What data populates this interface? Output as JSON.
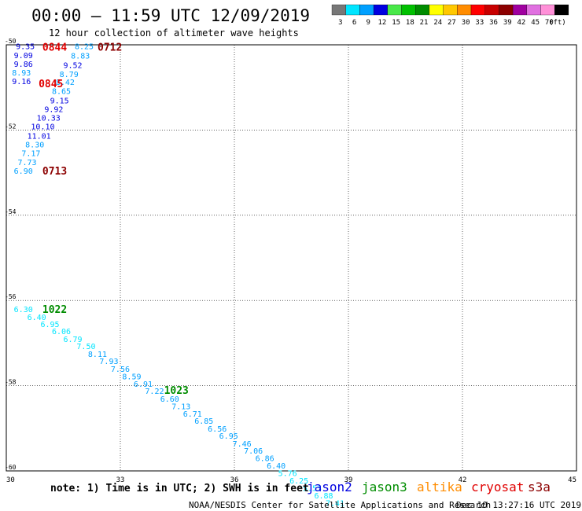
{
  "header": {
    "title": "00:00 – 11:59 UTC 12/09/2019",
    "subtitle": "12 hour collection of altimeter wave heights"
  },
  "legend": {
    "unit": "(ft)",
    "bins": [
      {
        "label": "3",
        "color": "#777777"
      },
      {
        "label": "6",
        "color": "#00e5ff"
      },
      {
        "label": "9",
        "color": "#00a0ff"
      },
      {
        "label": "12",
        "color": "#0000e0"
      },
      {
        "label": "15",
        "color": "#48e848"
      },
      {
        "label": "18",
        "color": "#00c000"
      },
      {
        "label": "21",
        "color": "#008c00"
      },
      {
        "label": "24",
        "color": "#ffff00"
      },
      {
        "label": "27",
        "color": "#ffc800"
      },
      {
        "label": "30",
        "color": "#ff8c00"
      },
      {
        "label": "33",
        "color": "#ff0000"
      },
      {
        "label": "36",
        "color": "#c80000"
      },
      {
        "label": "39",
        "color": "#8c0000"
      },
      {
        "label": "42",
        "color": "#a000a0"
      },
      {
        "label": "45",
        "color": "#e070e0"
      },
      {
        "label": "70",
        "color": "#ff90d8"
      },
      {
        "label": "",
        "color": "#000000"
      }
    ]
  },
  "chart_data": {
    "type": "scatter",
    "title": "00:00 – 11:59 UTC 12/09/2019",
    "subtitle": "12 hour collection of altimeter wave heights",
    "xlabel": "",
    "ylabel": "",
    "xlim": [
      30,
      45
    ],
    "ylim": [
      -60,
      -50
    ],
    "xticks": [
      30,
      33,
      36,
      39,
      42,
      45
    ],
    "yticks": [
      -50,
      -52,
      -54,
      -56,
      -58,
      -60
    ],
    "grid": true,
    "units": "ft",
    "series": [
      {
        "name": "jason2",
        "color": "#0000e0",
        "points": [
          {
            "x": 30.25,
            "y": -50.03,
            "v": "9.35"
          },
          {
            "x": 30.2,
            "y": -50.24,
            "v": "9.09"
          },
          {
            "x": 30.2,
            "y": -50.44,
            "v": "9.86"
          },
          {
            "x": 30.15,
            "y": -50.85,
            "v": "9.16"
          },
          {
            "x": 31.5,
            "y": -50.47,
            "v": "9.52"
          },
          {
            "x": 31.15,
            "y": -51.3,
            "v": "9.15"
          },
          {
            "x": 31.0,
            "y": -51.5,
            "v": "9.92"
          },
          {
            "x": 30.8,
            "y": -51.71,
            "v": "10.33"
          },
          {
            "x": 30.65,
            "y": -51.91,
            "v": "10.10"
          },
          {
            "x": 30.55,
            "y": -52.13,
            "v": "11.01"
          }
        ]
      },
      {
        "name": "jason3",
        "color": "#008c00",
        "points": []
      },
      {
        "name": "altika",
        "color": "#ff8c00",
        "points": []
      },
      {
        "name": "cryosat",
        "color": "#e00000",
        "points": []
      },
      {
        "name": "s3a",
        "color": "#8c0000",
        "points": []
      }
    ],
    "observations": [
      {
        "x": 30.25,
        "y": -50.03,
        "v": "9.35",
        "color": "#0000e0"
      },
      {
        "x": 30.2,
        "y": -50.24,
        "v": "9.09",
        "color": "#0000e0"
      },
      {
        "x": 30.2,
        "y": -50.44,
        "v": "9.86",
        "color": "#0000e0"
      },
      {
        "x": 30.15,
        "y": -50.65,
        "v": "8.93",
        "color": "#00a0ff"
      },
      {
        "x": 30.15,
        "y": -50.85,
        "v": "9.16",
        "color": "#0000e0"
      },
      {
        "x": 31.8,
        "y": -50.03,
        "v": "8.25",
        "color": "#00a0ff"
      },
      {
        "x": 31.7,
        "y": -50.25,
        "v": "8.83",
        "color": "#00a0ff"
      },
      {
        "x": 31.5,
        "y": -50.47,
        "v": "9.52",
        "color": "#0000e0"
      },
      {
        "x": 31.4,
        "y": -50.68,
        "v": "8.79",
        "color": "#00a0ff"
      },
      {
        "x": 31.3,
        "y": -50.87,
        "v": "8.42",
        "color": "#00a0ff"
      },
      {
        "x": 31.2,
        "y": -51.08,
        "v": "8.65",
        "color": "#00a0ff"
      },
      {
        "x": 31.15,
        "y": -51.3,
        "v": "9.15",
        "color": "#0000e0"
      },
      {
        "x": 31.0,
        "y": -51.5,
        "v": "9.92",
        "color": "#0000e0"
      },
      {
        "x": 30.8,
        "y": -51.71,
        "v": "10.33",
        "color": "#0000e0"
      },
      {
        "x": 30.65,
        "y": -51.91,
        "v": "10.10",
        "color": "#0000e0"
      },
      {
        "x": 30.55,
        "y": -52.13,
        "v": "11.01",
        "color": "#0000e0"
      },
      {
        "x": 30.5,
        "y": -52.33,
        "v": "8.30",
        "color": "#00a0ff"
      },
      {
        "x": 30.4,
        "y": -52.54,
        "v": "7.17",
        "color": "#00a0ff"
      },
      {
        "x": 30.3,
        "y": -52.75,
        "v": "7.73",
        "color": "#00a0ff"
      },
      {
        "x": 30.2,
        "y": -52.95,
        "v": "6.90",
        "color": "#00a0ff"
      },
      {
        "x": 30.2,
        "y": -56.2,
        "v": "6.30",
        "color": "#00e5ff"
      },
      {
        "x": 30.55,
        "y": -56.38,
        "v": "6.40",
        "color": "#00e5ff"
      },
      {
        "x": 30.9,
        "y": -56.55,
        "v": "6.95",
        "color": "#00e5ff"
      },
      {
        "x": 31.2,
        "y": -56.72,
        "v": "6.06",
        "color": "#00e5ff"
      },
      {
        "x": 31.5,
        "y": -56.9,
        "v": "6.79",
        "color": "#00e5ff"
      },
      {
        "x": 31.85,
        "y": -57.07,
        "v": "7.50",
        "color": "#00e5ff"
      },
      {
        "x": 32.15,
        "y": -57.25,
        "v": "8.11",
        "color": "#00a0ff"
      },
      {
        "x": 32.45,
        "y": -57.42,
        "v": "7.93",
        "color": "#00a0ff"
      },
      {
        "x": 32.75,
        "y": -57.6,
        "v": "7.56",
        "color": "#00a0ff"
      },
      {
        "x": 33.05,
        "y": -57.78,
        "v": "8.59",
        "color": "#00a0ff"
      },
      {
        "x": 33.35,
        "y": -57.95,
        "v": "6.91",
        "color": "#00a0ff"
      },
      {
        "x": 33.65,
        "y": -58.12,
        "v": "7.22",
        "color": "#00a0ff"
      },
      {
        "x": 34.05,
        "y": -58.3,
        "v": "6.60",
        "color": "#00a0ff"
      },
      {
        "x": 34.35,
        "y": -58.48,
        "v": "7.13",
        "color": "#00a0ff"
      },
      {
        "x": 34.65,
        "y": -58.65,
        "v": "6.71",
        "color": "#00a0ff"
      },
      {
        "x": 34.95,
        "y": -58.82,
        "v": "6.85",
        "color": "#00a0ff"
      },
      {
        "x": 35.3,
        "y": -59.0,
        "v": "6.56",
        "color": "#00a0ff"
      },
      {
        "x": 35.6,
        "y": -59.17,
        "v": "6.95",
        "color": "#00a0ff"
      },
      {
        "x": 35.95,
        "y": -59.35,
        "v": "7.46",
        "color": "#00a0ff"
      },
      {
        "x": 36.25,
        "y": -59.52,
        "v": "7.06",
        "color": "#00a0ff"
      },
      {
        "x": 36.55,
        "y": -59.7,
        "v": "6.86",
        "color": "#00a0ff"
      },
      {
        "x": 36.85,
        "y": -59.87,
        "v": "6.40",
        "color": "#00a0ff"
      },
      {
        "x": 37.15,
        "y": -60.05,
        "v": "5.76",
        "color": "#00e5ff"
      },
      {
        "x": 37.45,
        "y": -60.22,
        "v": "6.25",
        "color": "#00e5ff"
      },
      {
        "x": 37.8,
        "y": -60.4,
        "v": "5.53",
        "color": "#00e5ff"
      },
      {
        "x": 38.1,
        "y": -60.57,
        "v": "6.88",
        "color": "#00e5ff"
      },
      {
        "x": 38.4,
        "y": -60.75,
        "v": "7.41",
        "color": "#00e5ff"
      }
    ],
    "time_labels": [
      {
        "x": 30.95,
        "y": -50.05,
        "text": "0844",
        "color": "#e00000"
      },
      {
        "x": 32.4,
        "y": -50.05,
        "text": "0712",
        "color": "#8c0000"
      },
      {
        "x": 30.85,
        "y": -50.9,
        "text": "0845",
        "color": "#e00000"
      },
      {
        "x": 30.95,
        "y": -52.95,
        "text": "0713",
        "color": "#8c0000"
      },
      {
        "x": 30.95,
        "y": -56.2,
        "text": "1022",
        "color": "#008c00"
      },
      {
        "x": 34.15,
        "y": -58.1,
        "text": "1023",
        "color": "#008c00"
      }
    ]
  },
  "footer": {
    "note": "note: 1) Time is in UTC; 2) SWH is in feet",
    "credit": "NOAA/NESDIS Center for Satellite Applications and Research",
    "timestamp": "Dec 10 13:27:16 UTC 2019",
    "satellites": [
      {
        "name": "jason2",
        "color": "#0000e0"
      },
      {
        "name": "jason3",
        "color": "#008c00"
      },
      {
        "name": "altika",
        "color": "#ff8c00"
      },
      {
        "name": "cryosat",
        "color": "#e00000"
      },
      {
        "name": "s3a",
        "color": "#8c0000"
      }
    ]
  }
}
